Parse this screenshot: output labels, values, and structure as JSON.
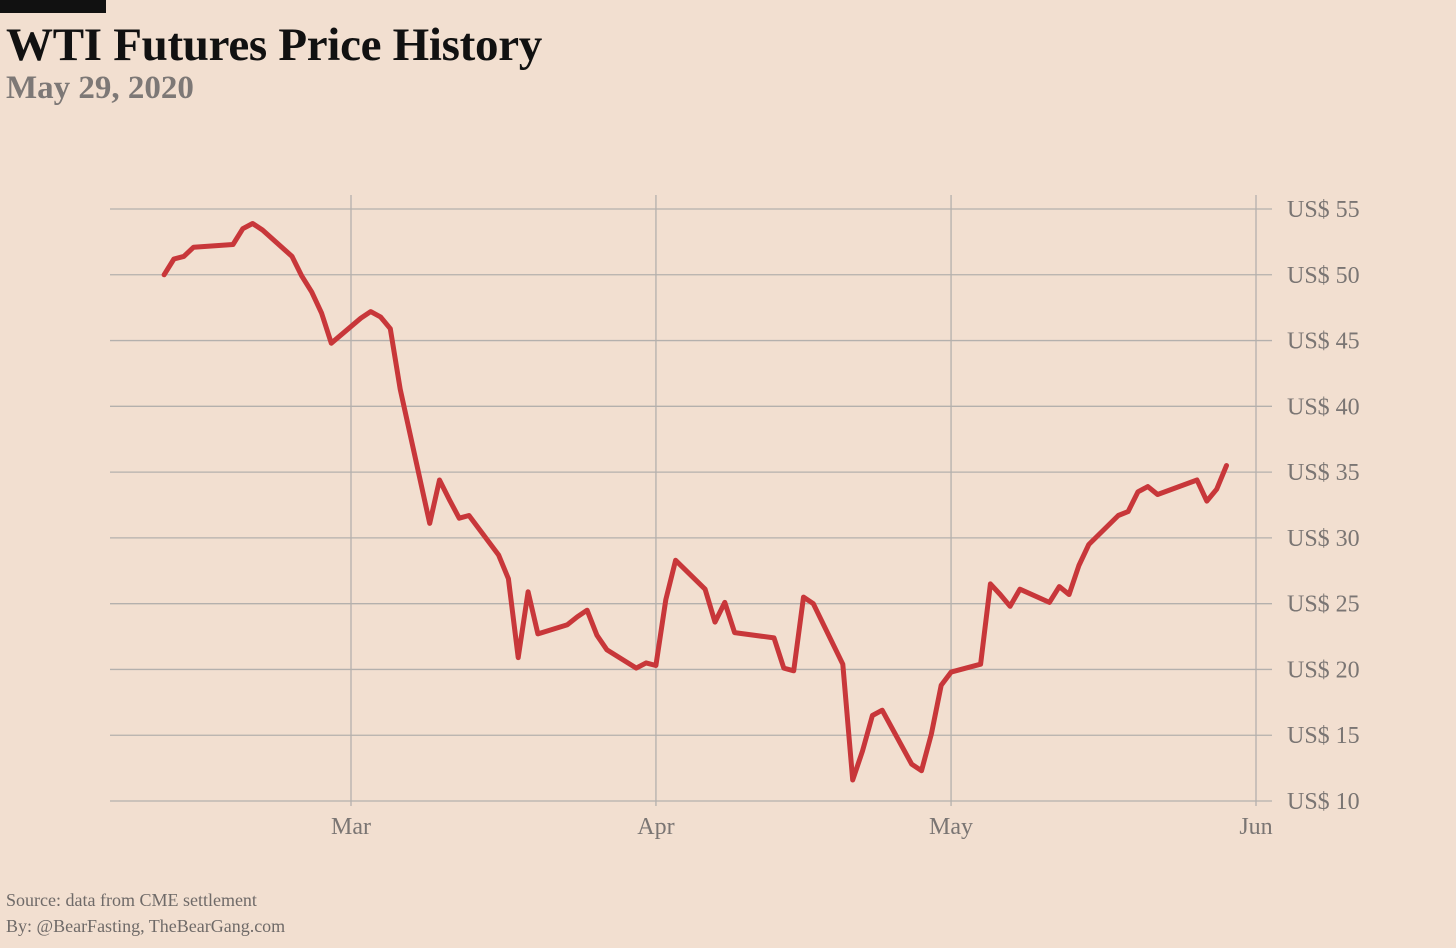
{
  "header": {
    "title": "WTI Futures Price History",
    "subtitle": "May 29, 2020"
  },
  "footer": {
    "source": "Source: data from CME settlement",
    "byline": "By: @BearFasting, TheBearGang.com"
  },
  "colors": {
    "background": "#f2dfd0",
    "line": "#c8373a",
    "grid": "#b4b0ad",
    "axis_text": "#7a7573",
    "title": "#111111",
    "subtitle": "#7d7876"
  },
  "chart_data": {
    "type": "line",
    "title": "WTI Futures Price History",
    "subtitle": "May 29, 2020",
    "xlabel": "",
    "ylabel": "",
    "y_axis_position": "right",
    "grid": true,
    "legend": "none",
    "xlim": [
      "2020-02-05",
      "2020-06-01"
    ],
    "ylim": [
      10,
      55
    ],
    "y_ticks": [
      10,
      15,
      20,
      25,
      30,
      35,
      40,
      45,
      50,
      55
    ],
    "y_tick_labels": [
      "US$ 10",
      "US$ 15",
      "US$ 20",
      "US$ 25",
      "US$ 30",
      "US$ 35",
      "US$ 40",
      "US$ 45",
      "US$ 50",
      "US$ 55"
    ],
    "x_ticks": [
      "2020-03-01",
      "2020-04-01",
      "2020-05-01",
      "2020-06-01"
    ],
    "x_tick_labels": [
      "Mar",
      "Apr",
      "May",
      "Jun"
    ],
    "series": [
      {
        "x": [
          "2020-02-11",
          "2020-02-12",
          "2020-02-13",
          "2020-02-14",
          "2020-02-18",
          "2020-02-19",
          "2020-02-20",
          "2020-02-21",
          "2020-02-24",
          "2020-02-25",
          "2020-02-26",
          "2020-02-27",
          "2020-02-28",
          "2020-03-02",
          "2020-03-03",
          "2020-03-04",
          "2020-03-05",
          "2020-03-06",
          "2020-03-09",
          "2020-03-10",
          "2020-03-11",
          "2020-03-12",
          "2020-03-13",
          "2020-03-16",
          "2020-03-17",
          "2020-03-18",
          "2020-03-19",
          "2020-03-20",
          "2020-03-23",
          "2020-03-24",
          "2020-03-25",
          "2020-03-26",
          "2020-03-27",
          "2020-03-30",
          "2020-03-31",
          "2020-04-01",
          "2020-04-02",
          "2020-04-03",
          "2020-04-06",
          "2020-04-07",
          "2020-04-08",
          "2020-04-09",
          "2020-04-13",
          "2020-04-14",
          "2020-04-15",
          "2020-04-16",
          "2020-04-17",
          "2020-04-20",
          "2020-04-21",
          "2020-04-22",
          "2020-04-23",
          "2020-04-24",
          "2020-04-27",
          "2020-04-28",
          "2020-04-29",
          "2020-04-30",
          "2020-05-01",
          "2020-05-04",
          "2020-05-05",
          "2020-05-06",
          "2020-05-07",
          "2020-05-08",
          "2020-05-11",
          "2020-05-12",
          "2020-05-13",
          "2020-05-14",
          "2020-05-15",
          "2020-05-18",
          "2020-05-19",
          "2020-05-20",
          "2020-05-21",
          "2020-05-22",
          "2020-05-26",
          "2020-05-27",
          "2020-05-28",
          "2020-05-29"
        ],
        "values": [
          50.0,
          51.2,
          51.4,
          52.1,
          52.3,
          53.5,
          53.9,
          53.4,
          51.4,
          49.9,
          48.7,
          47.1,
          44.8,
          46.7,
          47.2,
          46.8,
          45.9,
          41.3,
          31.1,
          34.4,
          32.9,
          31.5,
          31.7,
          28.7,
          26.9,
          20.9,
          25.9,
          22.7,
          23.4,
          24.0,
          24.5,
          22.6,
          21.5,
          20.1,
          20.5,
          20.3,
          25.3,
          28.3,
          26.1,
          23.6,
          25.1,
          22.8,
          22.4,
          20.1,
          19.9,
          25.5,
          25.0,
          20.4,
          11.6,
          13.8,
          16.5,
          16.9,
          12.8,
          12.3,
          15.1,
          18.8,
          19.8,
          20.4,
          26.5,
          25.7,
          24.8,
          26.1,
          25.1,
          26.3,
          25.7,
          27.9,
          29.5,
          31.7,
          32.0,
          33.5,
          33.9,
          33.3,
          34.4,
          32.8,
          33.7,
          35.5
        ]
      }
    ]
  }
}
